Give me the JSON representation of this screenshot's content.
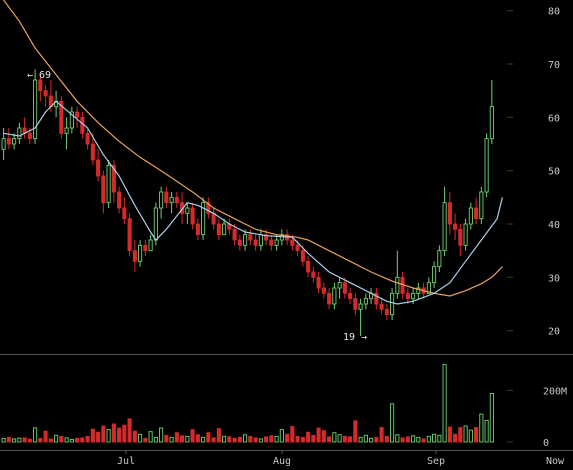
{
  "chart_data": {
    "type": "candlestick",
    "price_axis": {
      "ylim": [
        16,
        82
      ],
      "ticks": [
        20,
        30,
        40,
        50,
        60,
        70,
        80
      ]
    },
    "volume_axis": {
      "ylim": [
        0,
        310
      ],
      "ticks": [
        0,
        200
      ],
      "tick_labels": [
        "0",
        "200M"
      ],
      "unit": "M"
    },
    "x_ticks": [
      "Jul",
      "Aug",
      "Sep",
      "Now"
    ],
    "annotations": [
      {
        "text": "← 69",
        "value": 69
      },
      {
        "text": "19 →",
        "value": 19
      }
    ],
    "colors": {
      "up": "#6fd36f",
      "down": "#d42a2a",
      "ma_fast": "#a9cfe6",
      "ma_slow": "#e7a35a",
      "grid": "#3a3a3a",
      "divider": "#555555"
    },
    "candles": [
      {
        "o": 54,
        "h": 58,
        "l": 52,
        "c": 56
      },
      {
        "o": 56,
        "h": 58,
        "l": 54,
        "c": 55
      },
      {
        "o": 55,
        "h": 57,
        "l": 54,
        "c": 56
      },
      {
        "o": 56,
        "h": 59,
        "l": 55,
        "c": 58
      },
      {
        "o": 58,
        "h": 60,
        "l": 56,
        "c": 57
      },
      {
        "o": 57,
        "h": 58,
        "l": 55,
        "c": 56
      },
      {
        "o": 56,
        "h": 69,
        "l": 55,
        "c": 67
      },
      {
        "o": 67,
        "h": 68,
        "l": 63,
        "c": 65
      },
      {
        "o": 65,
        "h": 66,
        "l": 62,
        "c": 64
      },
      {
        "o": 64,
        "h": 67,
        "l": 61,
        "c": 62
      },
      {
        "o": 62,
        "h": 65,
        "l": 60,
        "c": 63
      },
      {
        "o": 63,
        "h": 64,
        "l": 56,
        "c": 57
      },
      {
        "o": 57,
        "h": 60,
        "l": 54,
        "c": 58
      },
      {
        "o": 58,
        "h": 62,
        "l": 57,
        "c": 61
      },
      {
        "o": 61,
        "h": 62,
        "l": 58,
        "c": 60
      },
      {
        "o": 60,
        "h": 61,
        "l": 56,
        "c": 57
      },
      {
        "o": 57,
        "h": 58,
        "l": 54,
        "c": 55
      },
      {
        "o": 55,
        "h": 57,
        "l": 51,
        "c": 52
      },
      {
        "o": 52,
        "h": 54,
        "l": 48,
        "c": 49
      },
      {
        "o": 49,
        "h": 50,
        "l": 42,
        "c": 44
      },
      {
        "o": 44,
        "h": 52,
        "l": 43,
        "c": 51
      },
      {
        "o": 51,
        "h": 52,
        "l": 44,
        "c": 46
      },
      {
        "o": 46,
        "h": 47,
        "l": 42,
        "c": 43
      },
      {
        "o": 43,
        "h": 45,
        "l": 40,
        "c": 41
      },
      {
        "o": 41,
        "h": 42,
        "l": 34,
        "c": 35
      },
      {
        "o": 35,
        "h": 37,
        "l": 31,
        "c": 33
      },
      {
        "o": 33,
        "h": 37,
        "l": 32,
        "c": 36
      },
      {
        "o": 36,
        "h": 37,
        "l": 34,
        "c": 35
      },
      {
        "o": 35,
        "h": 38,
        "l": 35,
        "c": 37
      },
      {
        "o": 37,
        "h": 44,
        "l": 36,
        "c": 43
      },
      {
        "o": 43,
        "h": 47,
        "l": 41,
        "c": 46
      },
      {
        "o": 46,
        "h": 47,
        "l": 43,
        "c": 44
      },
      {
        "o": 44,
        "h": 46,
        "l": 42,
        "c": 45
      },
      {
        "o": 45,
        "h": 46,
        "l": 43,
        "c": 44
      },
      {
        "o": 44,
        "h": 46,
        "l": 40,
        "c": 42
      },
      {
        "o": 42,
        "h": 44,
        "l": 40,
        "c": 43
      },
      {
        "o": 43,
        "h": 44,
        "l": 39,
        "c": 40
      },
      {
        "o": 40,
        "h": 41,
        "l": 37,
        "c": 38
      },
      {
        "o": 38,
        "h": 45,
        "l": 37,
        "c": 44
      },
      {
        "o": 44,
        "h": 45,
        "l": 41,
        "c": 42
      },
      {
        "o": 42,
        "h": 43,
        "l": 39,
        "c": 40
      },
      {
        "o": 40,
        "h": 41,
        "l": 37,
        "c": 38
      },
      {
        "o": 38,
        "h": 41,
        "l": 38,
        "c": 40
      },
      {
        "o": 40,
        "h": 41,
        "l": 38,
        "c": 39
      },
      {
        "o": 39,
        "h": 40,
        "l": 36,
        "c": 37
      },
      {
        "o": 37,
        "h": 38,
        "l": 35,
        "c": 36
      },
      {
        "o": 36,
        "h": 39,
        "l": 35,
        "c": 38
      },
      {
        "o": 38,
        "h": 39,
        "l": 36,
        "c": 37
      },
      {
        "o": 37,
        "h": 38,
        "l": 35,
        "c": 36
      },
      {
        "o": 36,
        "h": 39,
        "l": 35,
        "c": 38
      },
      {
        "o": 38,
        "h": 39,
        "l": 36,
        "c": 37
      },
      {
        "o": 37,
        "h": 38,
        "l": 35,
        "c": 36
      },
      {
        "o": 36,
        "h": 38,
        "l": 35,
        "c": 37
      },
      {
        "o": 37,
        "h": 39,
        "l": 36,
        "c": 38
      },
      {
        "o": 38,
        "h": 39,
        "l": 36,
        "c": 37
      },
      {
        "o": 37,
        "h": 38,
        "l": 35,
        "c": 36
      },
      {
        "o": 36,
        "h": 37,
        "l": 34,
        "c": 35
      },
      {
        "o": 35,
        "h": 36,
        "l": 32,
        "c": 33
      },
      {
        "o": 33,
        "h": 34,
        "l": 30,
        "c": 31
      },
      {
        "o": 31,
        "h": 32,
        "l": 29,
        "c": 30
      },
      {
        "o": 30,
        "h": 31,
        "l": 27,
        "c": 28
      },
      {
        "o": 28,
        "h": 29,
        "l": 26,
        "c": 27
      },
      {
        "o": 27,
        "h": 28,
        "l": 24,
        "c": 25
      },
      {
        "o": 25,
        "h": 29,
        "l": 24,
        "c": 28
      },
      {
        "o": 28,
        "h": 30,
        "l": 26,
        "c": 29
      },
      {
        "o": 29,
        "h": 30,
        "l": 26,
        "c": 27
      },
      {
        "o": 27,
        "h": 28,
        "l": 25,
        "c": 26
      },
      {
        "o": 26,
        "h": 27,
        "l": 23,
        "c": 24
      },
      {
        "o": 24,
        "h": 26,
        "l": 19,
        "c": 25
      },
      {
        "o": 25,
        "h": 27,
        "l": 24,
        "c": 26
      },
      {
        "o": 26,
        "h": 28,
        "l": 25,
        "c": 27
      },
      {
        "o": 27,
        "h": 28,
        "l": 24,
        "c": 25
      },
      {
        "o": 25,
        "h": 26,
        "l": 23,
        "c": 24
      },
      {
        "o": 24,
        "h": 25,
        "l": 22,
        "c": 23
      },
      {
        "o": 23,
        "h": 28,
        "l": 22,
        "c": 27
      },
      {
        "o": 27,
        "h": 35,
        "l": 26,
        "c": 30
      },
      {
        "o": 30,
        "h": 31,
        "l": 26,
        "c": 27
      },
      {
        "o": 27,
        "h": 28,
        "l": 25,
        "c": 26
      },
      {
        "o": 26,
        "h": 28,
        "l": 25,
        "c": 27
      },
      {
        "o": 27,
        "h": 29,
        "l": 26,
        "c": 28
      },
      {
        "o": 28,
        "h": 29,
        "l": 26,
        "c": 27
      },
      {
        "o": 27,
        "h": 30,
        "l": 27,
        "c": 29
      },
      {
        "o": 29,
        "h": 33,
        "l": 28,
        "c": 32
      },
      {
        "o": 32,
        "h": 36,
        "l": 31,
        "c": 35
      },
      {
        "o": 35,
        "h": 47,
        "l": 34,
        "c": 44
      },
      {
        "o": 44,
        "h": 46,
        "l": 38,
        "c": 40
      },
      {
        "o": 40,
        "h": 42,
        "l": 37,
        "c": 39
      },
      {
        "o": 39,
        "h": 40,
        "l": 34,
        "c": 36
      },
      {
        "o": 36,
        "h": 41,
        "l": 35,
        "c": 40
      },
      {
        "o": 40,
        "h": 44,
        "l": 39,
        "c": 43
      },
      {
        "o": 43,
        "h": 45,
        "l": 40,
        "c": 41
      },
      {
        "o": 41,
        "h": 47,
        "l": 40,
        "c": 46
      },
      {
        "o": 46,
        "h": 57,
        "l": 45,
        "c": 56
      },
      {
        "o": 56,
        "h": 67,
        "l": 55,
        "c": 62
      }
    ],
    "volume": [
      14,
      18,
      12,
      15,
      16,
      11,
      55,
      14,
      42,
      12,
      26,
      22,
      16,
      10,
      14,
      16,
      22,
      50,
      38,
      62,
      48,
      70,
      54,
      65,
      90,
      42,
      30,
      14,
      40,
      18,
      54,
      26,
      18,
      36,
      24,
      22,
      48,
      28,
      18,
      36,
      16,
      52,
      22,
      20,
      14,
      18,
      28,
      22,
      16,
      12,
      20,
      24,
      22,
      48,
      30,
      60,
      22,
      18,
      38,
      26,
      54,
      44,
      20,
      36,
      28,
      22,
      20,
      82,
      18,
      26,
      14,
      18,
      56,
      22,
      148,
      28,
      16,
      20,
      24,
      18,
      12,
      22,
      30,
      26,
      300,
      58,
      30,
      56,
      62,
      46,
      56,
      108,
      84,
      188
    ],
    "ma_fast": [
      [
        0,
        57
      ],
      [
        3,
        56.5
      ],
      [
        6,
        58
      ],
      [
        8,
        61
      ],
      [
        10,
        63
      ],
      [
        13,
        60.5
      ],
      [
        16,
        58
      ],
      [
        19,
        53
      ],
      [
        22,
        49
      ],
      [
        25,
        43.5
      ],
      [
        28,
        38.5
      ],
      [
        29,
        37
      ],
      [
        31,
        39
      ],
      [
        33,
        41.5
      ],
      [
        35,
        44
      ],
      [
        37,
        43.5
      ],
      [
        40,
        42
      ],
      [
        43,
        40
      ],
      [
        46,
        38.5
      ],
      [
        50,
        37.8
      ],
      [
        55,
        37.5
      ],
      [
        58,
        34.5
      ],
      [
        62,
        31
      ],
      [
        66,
        29
      ],
      [
        70,
        27
      ],
      [
        73,
        25.5
      ],
      [
        75,
        25
      ],
      [
        78,
        25.5
      ],
      [
        82,
        27
      ],
      [
        85,
        29
      ],
      [
        88,
        33
      ],
      [
        91,
        37
      ],
      [
        94,
        41
      ],
      [
        95,
        45
      ]
    ],
    "ma_slow": [
      [
        0,
        82
      ],
      [
        3,
        78
      ],
      [
        6,
        73
      ],
      [
        10,
        68
      ],
      [
        14,
        63
      ],
      [
        18,
        59
      ],
      [
        22,
        55.5
      ],
      [
        26,
        52.5
      ],
      [
        30,
        50
      ],
      [
        33,
        48
      ],
      [
        36,
        46
      ],
      [
        40,
        43
      ],
      [
        44,
        41
      ],
      [
        48,
        39
      ],
      [
        52,
        38
      ],
      [
        56,
        37.5
      ],
      [
        58,
        37
      ],
      [
        62,
        35
      ],
      [
        66,
        33
      ],
      [
        70,
        31
      ],
      [
        74,
        29.3
      ],
      [
        78,
        28
      ],
      [
        82,
        27
      ],
      [
        85,
        26.5
      ],
      [
        88,
        27.5
      ],
      [
        91,
        28.8
      ],
      [
        93,
        30
      ],
      [
        95,
        32
      ]
    ]
  }
}
